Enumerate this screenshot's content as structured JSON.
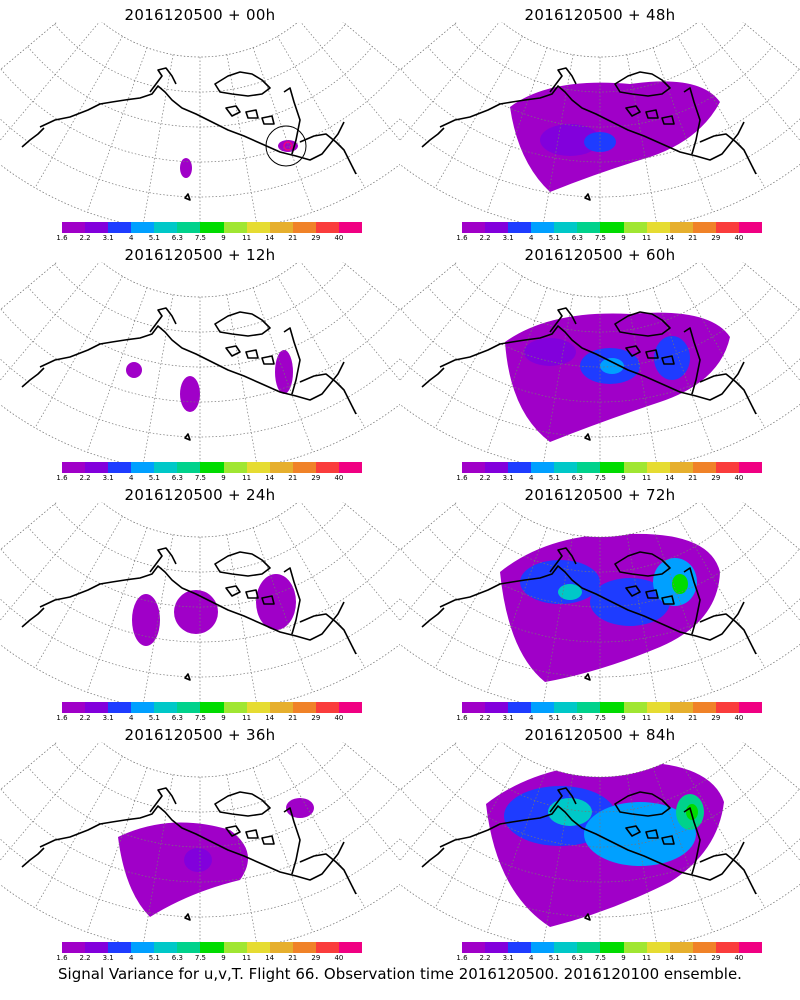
{
  "panels": [
    {
      "id": "p00",
      "title": "2016120500 + 00h",
      "lead": 0
    },
    {
      "id": "p48",
      "title": "2016120500 + 48h",
      "lead": 48
    },
    {
      "id": "p12",
      "title": "2016120500 + 12h",
      "lead": 12
    },
    {
      "id": "p60",
      "title": "2016120500 + 60h",
      "lead": 60
    },
    {
      "id": "p24",
      "title": "2016120500 + 24h",
      "lead": 24
    },
    {
      "id": "p72",
      "title": "2016120500 + 72h",
      "lead": 72
    },
    {
      "id": "p36",
      "title": "2016120500 + 36h",
      "lead": 36
    },
    {
      "id": "p84",
      "title": "2016120500 + 84h",
      "lead": 84
    }
  ],
  "colorbar": {
    "labels": [
      "1.6",
      "2.2",
      "3.1",
      "4",
      "5.1",
      "6.3",
      "7.5",
      "9",
      "11",
      "14",
      "21",
      "29",
      "40"
    ],
    "colors": [
      "#a000c8",
      "#8200dc",
      "#1e3cff",
      "#00a0ff",
      "#00c8c8",
      "#00d28c",
      "#00dc00",
      "#a0e632",
      "#e6dc32",
      "#e6af2d",
      "#f08228",
      "#fa3c3c",
      "#f00082"
    ]
  },
  "caption": "Signal Variance for u,v,T. Flight 66. Observation time 2016120500. 2016120100 ensemble."
}
